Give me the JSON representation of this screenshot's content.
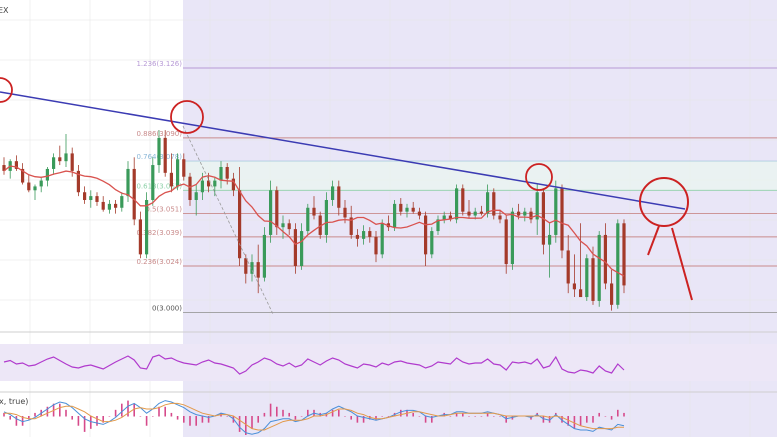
{
  "header": {
    "symbol_fragment": "EX",
    "macd_label_fragment": "x, true)"
  },
  "colors": {
    "bull": "#3a9a5a",
    "bear": "#a43a2a",
    "ma": "#d9534f",
    "trendline": "#3b3bb3",
    "rsi": "#b03acd",
    "rsi_band": "#ede7f7",
    "shade": "#e9e6f7",
    "grid": "#e6e6e6",
    "fib_red": "#c98b8b",
    "fib_blue": "#8bb7d8",
    "fib_green": "#8fd1a9",
    "fib_purple": "#b79ad6",
    "fib_gray": "#9a9a9a",
    "annotation": "#cc2222",
    "macd_line": "#4a8fd8",
    "macd_signal": "#e39a4a",
    "macd_hist": "#d64a8a"
  },
  "chart_data": {
    "type": "candlestick",
    "price_range": [
      2.99,
      3.16
    ],
    "fib_levels": [
      {
        "ratio": "1.236",
        "price": 3.126,
        "label": "1.236(3.126)",
        "color": "purple"
      },
      {
        "ratio": "0.886",
        "price": 3.09,
        "label": "0.886(3.090)",
        "color": "red"
      },
      {
        "ratio": "0.764",
        "price": 3.078,
        "label": "0.764(3.078)",
        "color": "blue"
      },
      {
        "ratio": "0.618",
        "price": 3.063,
        "label": "0.618(3.063)",
        "color": "green"
      },
      {
        "ratio": "0.5",
        "price": 3.051,
        "label": "0.5(3.051)",
        "color": "red"
      },
      {
        "ratio": "0.382",
        "price": 3.039,
        "label": "0.382(3.039)",
        "color": "red"
      },
      {
        "ratio": "0.236",
        "price": 3.024,
        "label": "0.236(3.024)",
        "color": "red"
      },
      {
        "ratio": "0",
        "price": 3.0,
        "label": "0(3.000)",
        "color": "gray"
      }
    ],
    "candles": [
      [
        3.076,
        3.08,
        3.071,
        3.073
      ],
      [
        3.073,
        3.079,
        3.069,
        3.078
      ],
      [
        3.078,
        3.081,
        3.073,
        3.074
      ],
      [
        3.074,
        3.077,
        3.066,
        3.067
      ],
      [
        3.067,
        3.071,
        3.062,
        3.063
      ],
      [
        3.063,
        3.066,
        3.058,
        3.065
      ],
      [
        3.065,
        3.07,
        3.062,
        3.068
      ],
      [
        3.068,
        3.075,
        3.065,
        3.074
      ],
      [
        3.074,
        3.082,
        3.071,
        3.08
      ],
      [
        3.08,
        3.086,
        3.076,
        3.078
      ],
      [
        3.078,
        3.092,
        3.075,
        3.082
      ],
      [
        3.082,
        3.085,
        3.07,
        3.073
      ],
      [
        3.073,
        3.076,
        3.06,
        3.062
      ],
      [
        3.062,
        3.065,
        3.056,
        3.058
      ],
      [
        3.058,
        3.063,
        3.054,
        3.06
      ],
      [
        3.06,
        3.062,
        3.055,
        3.057
      ],
      [
        3.057,
        3.06,
        3.052,
        3.053
      ],
      [
        3.053,
        3.058,
        3.051,
        3.056
      ],
      [
        3.056,
        3.058,
        3.051,
        3.054
      ],
      [
        3.054,
        3.062,
        3.052,
        3.06
      ],
      [
        3.06,
        3.078,
        3.057,
        3.074
      ],
      [
        3.074,
        3.08,
        3.045,
        3.048
      ],
      [
        3.048,
        3.052,
        3.028,
        3.03
      ],
      [
        3.03,
        3.062,
        3.028,
        3.058
      ],
      [
        3.058,
        3.08,
        3.055,
        3.076
      ],
      [
        3.076,
        3.094,
        3.072,
        3.09
      ],
      [
        3.09,
        3.094,
        3.07,
        3.072
      ],
      [
        3.072,
        3.082,
        3.062,
        3.065
      ],
      [
        3.065,
        3.082,
        3.063,
        3.079
      ],
      [
        3.079,
        3.082,
        3.068,
        3.07
      ],
      [
        3.07,
        3.072,
        3.055,
        3.058
      ],
      [
        3.058,
        3.066,
        3.05,
        3.062
      ],
      [
        3.062,
        3.072,
        3.058,
        3.068
      ],
      [
        3.068,
        3.072,
        3.062,
        3.065
      ],
      [
        3.065,
        3.07,
        3.06,
        3.068
      ],
      [
        3.068,
        3.078,
        3.064,
        3.075
      ],
      [
        3.075,
        3.077,
        3.066,
        3.069
      ],
      [
        3.069,
        3.072,
        3.06,
        3.063
      ],
      [
        3.063,
        3.075,
        3.024,
        3.028
      ],
      [
        3.028,
        3.03,
        3.015,
        3.02
      ],
      [
        3.02,
        3.03,
        3.016,
        3.026
      ],
      [
        3.026,
        3.035,
        3.01,
        3.018
      ],
      [
        3.018,
        3.044,
        3.016,
        3.04
      ],
      [
        3.04,
        3.068,
        3.036,
        3.063
      ],
      [
        3.063,
        3.065,
        3.04,
        3.044
      ],
      [
        3.044,
        3.05,
        3.038,
        3.046
      ],
      [
        3.046,
        3.048,
        3.04,
        3.043
      ],
      [
        3.043,
        3.046,
        3.02,
        3.024
      ],
      [
        3.024,
        3.046,
        3.022,
        3.042
      ],
      [
        3.042,
        3.056,
        3.04,
        3.054
      ],
      [
        3.054,
        3.06,
        3.048,
        3.05
      ],
      [
        3.05,
        3.052,
        3.038,
        3.04
      ],
      [
        3.04,
        3.062,
        3.036,
        3.058
      ],
      [
        3.058,
        3.068,
        3.055,
        3.065
      ],
      [
        3.065,
        3.068,
        3.05,
        3.054
      ],
      [
        3.054,
        3.058,
        3.046,
        3.049
      ],
      [
        3.049,
        3.055,
        3.038,
        3.04
      ],
      [
        3.04,
        3.043,
        3.034,
        3.038
      ],
      [
        3.038,
        3.045,
        3.035,
        3.042
      ],
      [
        3.042,
        3.044,
        3.036,
        3.039
      ],
      [
        3.039,
        3.042,
        3.026,
        3.03
      ],
      [
        3.03,
        3.048,
        3.028,
        3.046
      ],
      [
        3.046,
        3.05,
        3.042,
        3.044
      ],
      [
        3.044,
        3.058,
        3.042,
        3.056
      ],
      [
        3.056,
        3.059,
        3.05,
        3.052
      ],
      [
        3.052,
        3.056,
        3.049,
        3.054
      ],
      [
        3.054,
        3.057,
        3.051,
        3.052
      ],
      [
        3.052,
        3.054,
        3.048,
        3.05
      ],
      [
        3.05,
        3.052,
        3.024,
        3.03
      ],
      [
        3.03,
        3.044,
        3.028,
        3.042
      ],
      [
        3.042,
        3.05,
        3.04,
        3.048
      ],
      [
        3.048,
        3.052,
        3.046,
        3.05
      ],
      [
        3.05,
        3.052,
        3.047,
        3.048
      ],
      [
        3.048,
        3.066,
        3.046,
        3.064
      ],
      [
        3.064,
        3.066,
        3.05,
        3.052
      ],
      [
        3.052,
        3.058,
        3.049,
        3.05
      ],
      [
        3.05,
        3.054,
        3.048,
        3.052
      ],
      [
        3.052,
        3.055,
        3.05,
        3.051
      ],
      [
        3.051,
        3.066,
        3.049,
        3.062
      ],
      [
        3.062,
        3.064,
        3.048,
        3.05
      ],
      [
        3.05,
        3.053,
        3.046,
        3.048
      ],
      [
        3.048,
        3.05,
        3.02,
        3.025
      ],
      [
        3.025,
        3.054,
        3.022,
        3.052
      ],
      [
        3.052,
        3.056,
        3.048,
        3.05
      ],
      [
        3.05,
        3.054,
        3.047,
        3.052
      ],
      [
        3.052,
        3.054,
        3.046,
        3.048
      ],
      [
        3.048,
        3.066,
        3.04,
        3.062
      ],
      [
        3.062,
        3.064,
        3.03,
        3.035
      ],
      [
        3.035,
        3.046,
        3.018,
        3.04
      ],
      [
        3.04,
        3.068,
        3.036,
        3.064
      ],
      [
        3.064,
        3.066,
        3.028,
        3.032
      ],
      [
        3.032,
        3.04,
        3.01,
        3.015
      ],
      [
        3.015,
        3.03,
        3.008,
        3.012
      ],
      [
        3.012,
        3.046,
        3.008,
        3.008
      ],
      [
        3.008,
        3.03,
        3.006,
        3.028
      ],
      [
        3.028,
        3.034,
        3.004,
        3.006
      ],
      [
        3.006,
        3.042,
        3.003,
        3.04
      ],
      [
        3.04,
        3.046,
        3.012,
        3.015
      ],
      [
        3.015,
        3.022,
        3.001,
        3.004
      ],
      [
        3.004,
        3.048,
        3.002,
        3.046
      ],
      [
        3.046,
        3.048,
        3.01,
        3.014
      ]
    ],
    "rsi": [
      52,
      55,
      48,
      50,
      44,
      46,
      52,
      58,
      62,
      55,
      48,
      42,
      40,
      44,
      46,
      42,
      38,
      45,
      52,
      58,
      64,
      56,
      40,
      38,
      62,
      66,
      58,
      60,
      54,
      50,
      48,
      46,
      52,
      56,
      50,
      48,
      44,
      40,
      28,
      34,
      46,
      52,
      60,
      56,
      48,
      44,
      50,
      42,
      46,
      58,
      52,
      46,
      54,
      60,
      56,
      48,
      44,
      40,
      48,
      46,
      42,
      50,
      46,
      52,
      54,
      50,
      48,
      46,
      40,
      44,
      52,
      50,
      48,
      60,
      52,
      48,
      50,
      50,
      58,
      48,
      46,
      36,
      52,
      50,
      52,
      48,
      58,
      40,
      44,
      62,
      38,
      32,
      30,
      36,
      34,
      30,
      44,
      34,
      30,
      48,
      36
    ],
    "macd": [
      0.3,
      0.1,
      -0.2,
      -0.4,
      -0.3,
      -0.1,
      0.2,
      0.5,
      0.8,
      1.0,
      0.9,
      0.6,
      0.2,
      -0.2,
      -0.4,
      -0.5,
      -0.6,
      -0.4,
      -0.1,
      0.3,
      0.7,
      0.9,
      0.6,
      0.2,
      0.5,
      0.9,
      1.1,
      1.0,
      0.8,
      0.6,
      0.3,
      0.1,
      0.0,
      -0.1,
      0.0,
      0.2,
      0.1,
      -0.2,
      -0.8,
      -1.2,
      -1.3,
      -1.2,
      -0.9,
      -0.4,
      -0.3,
      -0.2,
      -0.2,
      -0.4,
      -0.3,
      0.0,
      0.2,
      0.1,
      0.2,
      0.5,
      0.7,
      0.5,
      0.3,
      0.0,
      -0.1,
      -0.2,
      -0.3,
      -0.2,
      -0.1,
      0.1,
      0.3,
      0.4,
      0.4,
      0.3,
      0.0,
      -0.1,
      0.0,
      0.1,
      0.1,
      0.3,
      0.3,
      0.2,
      0.2,
      0.2,
      0.3,
      0.2,
      0.1,
      -0.2,
      -0.1,
      0.0,
      0.0,
      -0.1,
      0.1,
      -0.2,
      -0.3,
      0.1,
      -0.3,
      -0.6,
      -0.9,
      -1.0,
      -1.0,
      -1.1,
      -0.8,
      -0.9,
      -1.0,
      -0.6,
      -0.7
    ],
    "macd_signal": [
      0.2,
      0.2,
      0.1,
      -0.1,
      -0.2,
      -0.2,
      0.0,
      0.2,
      0.4,
      0.6,
      0.7,
      0.7,
      0.5,
      0.3,
      0.0,
      -0.2,
      -0.4,
      -0.4,
      -0.3,
      -0.1,
      0.2,
      0.5,
      0.6,
      0.5,
      0.5,
      0.6,
      0.8,
      0.9,
      0.9,
      0.8,
      0.6,
      0.4,
      0.2,
      0.1,
      0.0,
      0.1,
      0.1,
      0.0,
      -0.3,
      -0.6,
      -0.9,
      -1.0,
      -1.0,
      -0.8,
      -0.6,
      -0.4,
      -0.3,
      -0.3,
      -0.3,
      -0.2,
      0.0,
      0.0,
      0.1,
      0.3,
      0.5,
      0.5,
      0.4,
      0.2,
      0.1,
      -0.1,
      -0.2,
      -0.2,
      -0.1,
      0.0,
      0.1,
      0.2,
      0.3,
      0.3,
      0.2,
      0.1,
      0.0,
      0.0,
      0.1,
      0.2,
      0.2,
      0.2,
      0.2,
      0.2,
      0.2,
      0.2,
      0.1,
      0.0,
      0.0,
      0.0,
      0.0,
      0.0,
      0.0,
      0.0,
      -0.1,
      0.0,
      -0.1,
      -0.3,
      -0.5,
      -0.7,
      -0.8,
      -0.9,
      -0.9,
      -0.9,
      -0.9,
      -0.8,
      -0.8
    ]
  }
}
